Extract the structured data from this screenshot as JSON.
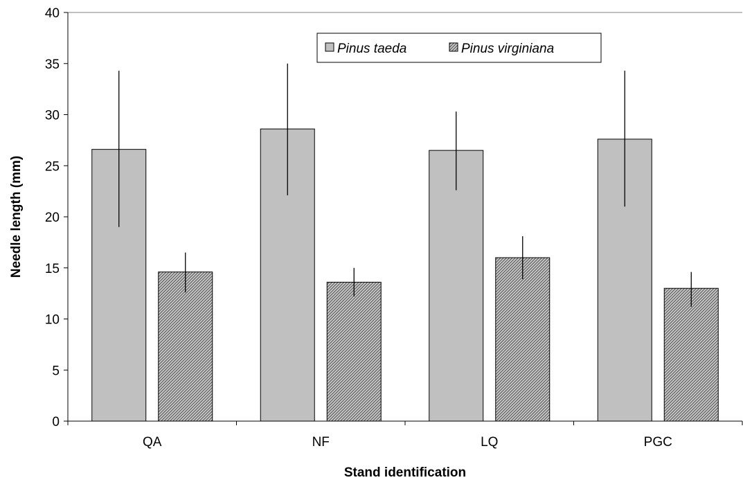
{
  "chart_data": {
    "type": "bar",
    "title": "",
    "xlabel": "Stand identification",
    "ylabel": "Needle length (mm)",
    "ylim": [
      0,
      40
    ],
    "yticks": [
      0,
      5,
      10,
      15,
      20,
      25,
      30,
      35,
      40
    ],
    "grid": false,
    "legend_position": "top-center",
    "categories": [
      "QA",
      "NF",
      "LQ",
      "PGC"
    ],
    "series": [
      {
        "name": "Pinus taeda",
        "color": "#c0c0c0",
        "pattern": "solid",
        "values": [
          26.6,
          28.6,
          26.5,
          27.6
        ],
        "error_low": [
          19.0,
          22.1,
          22.6,
          21.0
        ],
        "error_high": [
          34.3,
          35.0,
          30.3,
          34.3
        ]
      },
      {
        "name": "Pinus virginiana",
        "color": "#707070",
        "pattern": "dense-hatch",
        "values": [
          14.6,
          13.6,
          16.0,
          13.0
        ],
        "error_low": [
          12.6,
          12.2,
          13.9,
          11.2
        ],
        "error_high": [
          16.5,
          15.0,
          18.1,
          14.6
        ]
      }
    ]
  }
}
